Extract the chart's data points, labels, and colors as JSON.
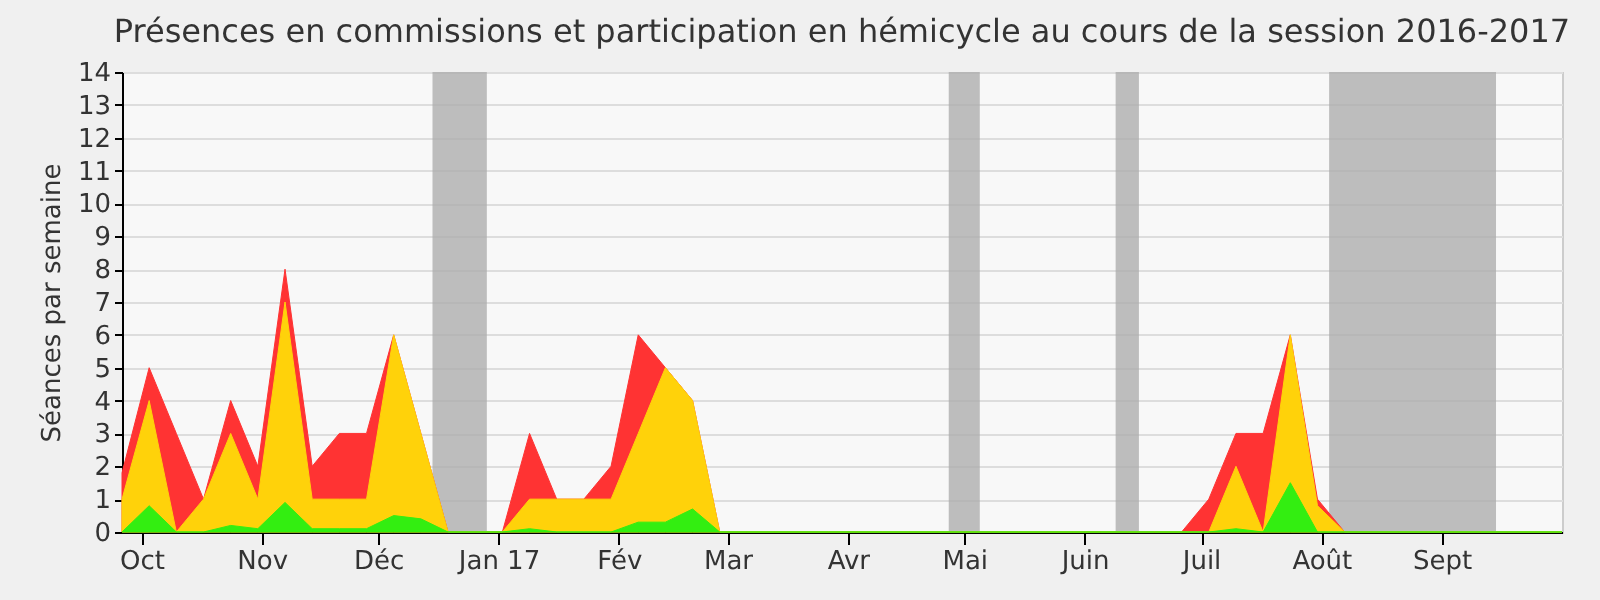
{
  "chart_data": {
    "type": "area",
    "title": "Présences en commissions et participation en hémicycle au cours de la session 2016-2017",
    "ylabel": "Séances par semaine",
    "x": [
      "2016-09-26",
      "2016-10-03",
      "2016-10-10",
      "2016-10-17",
      "2016-10-24",
      "2016-10-31",
      "2016-11-07",
      "2016-11-14",
      "2016-11-21",
      "2016-11-28",
      "2016-12-05",
      "2016-12-12",
      "2016-12-19",
      "2016-12-26",
      "2017-01-02",
      "2017-01-09",
      "2017-01-16",
      "2017-01-23",
      "2017-01-30",
      "2017-02-06",
      "2017-02-13",
      "2017-02-20",
      "2017-02-27",
      "2017-03-06",
      "2017-03-13",
      "2017-03-20",
      "2017-03-27",
      "2017-04-03",
      "2017-04-10",
      "2017-04-17",
      "2017-04-24",
      "2017-05-01",
      "2017-05-08",
      "2017-05-15",
      "2017-05-22",
      "2017-05-29",
      "2017-06-05",
      "2017-06-12",
      "2017-06-19",
      "2017-06-26",
      "2017-07-03",
      "2017-07-10",
      "2017-07-17",
      "2017-07-24",
      "2017-07-31",
      "2017-08-07",
      "2017-08-14",
      "2017-08-21",
      "2017-08-28",
      "2017-09-04",
      "2017-09-11",
      "2017-09-18",
      "2017-09-25",
      "2017-10-02"
    ],
    "series": [
      {
        "color": "#ff3333",
        "values": [
          1.8,
          5,
          3,
          1,
          4,
          2,
          8,
          2,
          3,
          3,
          6,
          3,
          0,
          0,
          0,
          3,
          1,
          1,
          2,
          6,
          5,
          4,
          0,
          0,
          0,
          0,
          0,
          0,
          0,
          0,
          0,
          0,
          0,
          0,
          0,
          0,
          0,
          0,
          0,
          0,
          1,
          3,
          3,
          6,
          1,
          0,
          0,
          0,
          0,
          0,
          0,
          0,
          0,
          0
        ]
      },
      {
        "color": "#ffd20a",
        "values": [
          1,
          4,
          0,
          1,
          3,
          1,
          7,
          1,
          1,
          1,
          6,
          3,
          0,
          0,
          0,
          1,
          1,
          1,
          1,
          3,
          5,
          4,
          0,
          0,
          0,
          0,
          0,
          0,
          0,
          0,
          0,
          0,
          0,
          0,
          0,
          0,
          0,
          0,
          0,
          0,
          0,
          2,
          0,
          6,
          0.8,
          0,
          0,
          0,
          0,
          0,
          0,
          0,
          0,
          0
        ]
      },
      {
        "color": "#33ee11",
        "values": [
          0,
          0.8,
          0,
          0,
          0.2,
          0.1,
          0.9,
          0.1,
          0.1,
          0.1,
          0.5,
          0.4,
          0,
          0,
          0,
          0.1,
          0,
          0,
          0,
          0.3,
          0.3,
          0.7,
          0,
          0,
          0,
          0,
          0,
          0,
          0,
          0,
          0,
          0,
          0,
          0,
          0,
          0,
          0,
          0,
          0,
          0,
          0,
          0.1,
          0,
          1.5,
          0,
          0,
          0,
          0,
          0,
          0,
          0,
          0,
          0,
          0
        ]
      }
    ],
    "xlim": [
      "2016-09-26",
      "2017-10-02"
    ],
    "xticks": [
      {
        "value": "2016-10-01",
        "label": "Oct"
      },
      {
        "value": "2016-11-01",
        "label": "Nov"
      },
      {
        "value": "2016-12-01",
        "label": "Déc"
      },
      {
        "value": "2017-01-01",
        "label": "Jan 17"
      },
      {
        "value": "2017-02-01",
        "label": "Fév"
      },
      {
        "value": "2017-03-01",
        "label": "Mar"
      },
      {
        "value": "2017-04-01",
        "label": "Avr"
      },
      {
        "value": "2017-05-01",
        "label": "Mai"
      },
      {
        "value": "2017-06-01",
        "label": "Juin"
      },
      {
        "value": "2017-07-01",
        "label": "Juil"
      },
      {
        "value": "2017-08-01",
        "label": "Août"
      },
      {
        "value": "2017-09-01",
        "label": "Sept"
      }
    ],
    "ylim": [
      0,
      14
    ],
    "yticks": [
      0,
      1,
      2,
      3,
      4,
      5,
      6,
      7,
      8,
      9,
      10,
      11,
      12,
      13,
      14
    ],
    "bands": [
      {
        "axis": "x",
        "from": "2016-12-15",
        "to": "2016-12-29",
        "color": "#aaaaaa"
      },
      {
        "axis": "x",
        "from": "2017-04-27",
        "to": "2017-05-05",
        "color": "#aaaaaa"
      },
      {
        "axis": "x",
        "from": "2017-06-09",
        "to": "2017-06-15",
        "color": "#aaaaaa"
      },
      {
        "axis": "x",
        "from": "2017-08-03",
        "to": "2017-09-15",
        "color": "#aaaaaa"
      }
    ],
    "grid": "y",
    "legend": false
  }
}
